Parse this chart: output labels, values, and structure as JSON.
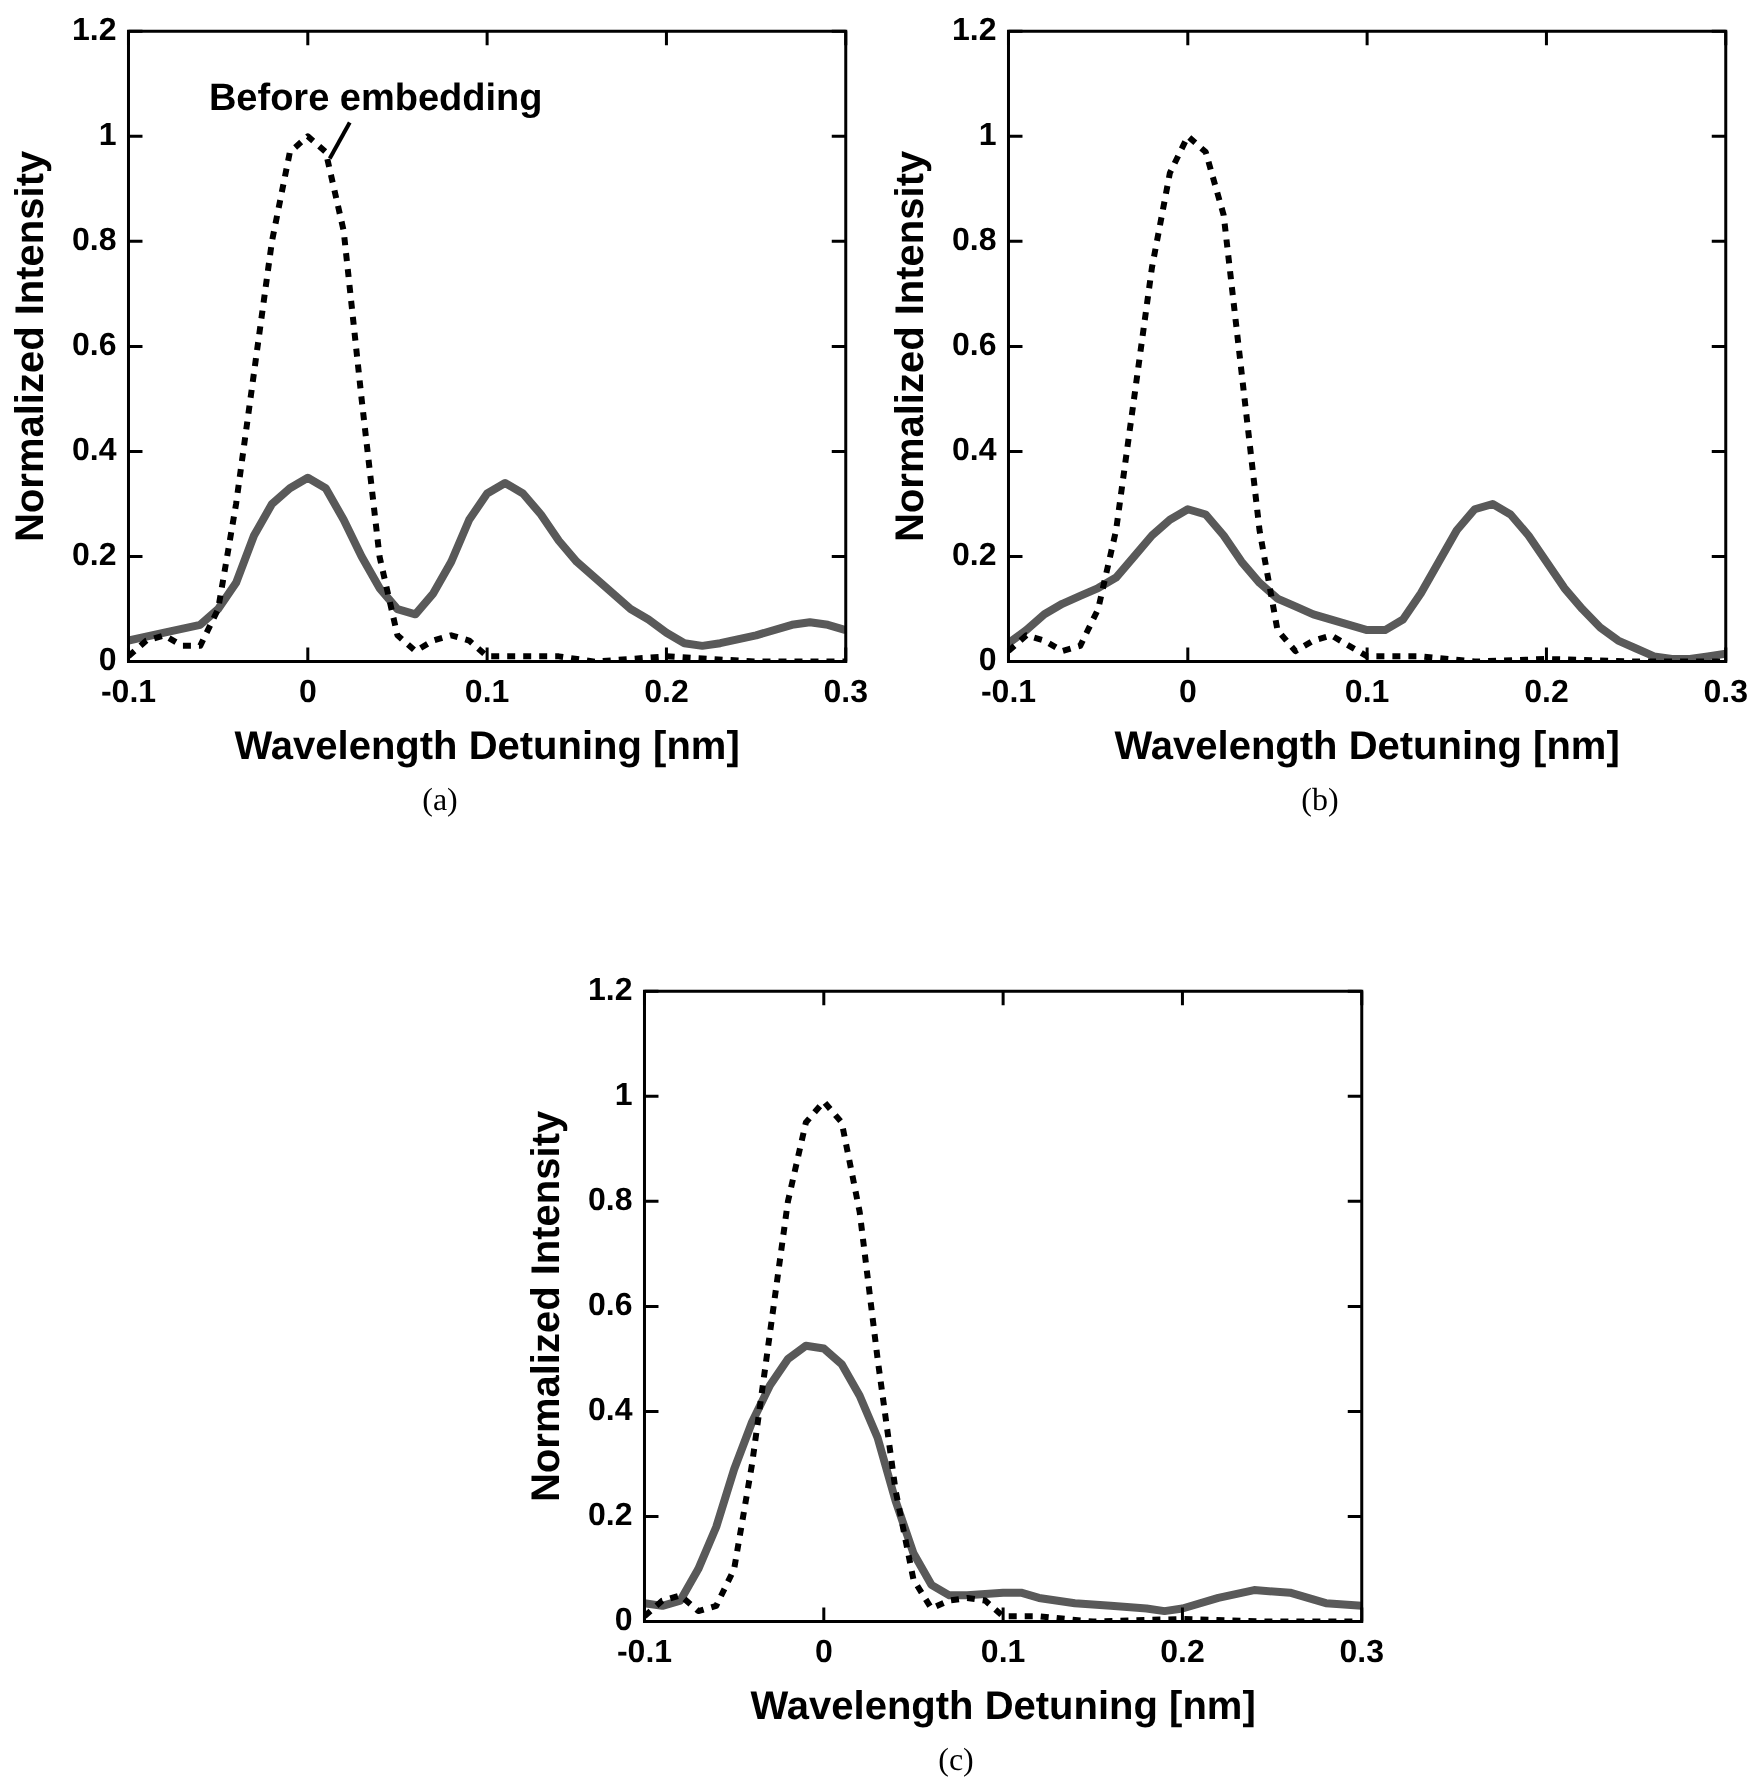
{
  "chart_data": [
    {
      "type": "line",
      "xlabel": "Wavelength Detuning [nm]",
      "ylabel": "Normalized Intensity",
      "xlim": [
        -0.1,
        0.3
      ],
      "ylim": [
        0,
        1.2
      ],
      "xticks": [
        -0.1,
        0,
        0.1,
        0.2,
        0.3
      ],
      "yticks": [
        0,
        0.2,
        0.4,
        0.6,
        0.8,
        1,
        1.2
      ],
      "grid": false,
      "marker": "none",
      "annotations": [
        {
          "text": "Before embedding",
          "x": 0.01,
          "y": 0.95
        },
        "(a)"
      ],
      "series": [
        {
          "color": "#000000",
          "line_style": "dotted",
          "x": [
            -0.1,
            -0.09,
            -0.08,
            -0.07,
            -0.06,
            -0.05,
            -0.04,
            -0.03,
            -0.02,
            -0.01,
            0,
            0.01,
            0.02,
            0.03,
            0.04,
            0.05,
            0.06,
            0.07,
            0.08,
            0.09,
            0.1,
            0.12,
            0.14,
            0.16,
            0.2,
            0.25,
            0.3
          ],
          "values": [
            0.01,
            0.04,
            0.05,
            0.03,
            0.03,
            0.1,
            0.3,
            0.55,
            0.8,
            0.97,
            1.0,
            0.97,
            0.82,
            0.5,
            0.2,
            0.05,
            0.02,
            0.04,
            0.05,
            0.04,
            0.01,
            0.01,
            0.01,
            0,
            0.01,
            0,
            0
          ]
        },
        {
          "color": "#595959",
          "line_style": "solid",
          "x": [
            -0.1,
            -0.08,
            -0.06,
            -0.05,
            -0.04,
            -0.03,
            -0.02,
            -0.01,
            0,
            0.01,
            0.02,
            0.03,
            0.04,
            0.05,
            0.06,
            0.07,
            0.08,
            0.09,
            0.1,
            0.11,
            0.12,
            0.13,
            0.14,
            0.15,
            0.16,
            0.17,
            0.18,
            0.19,
            0.2,
            0.21,
            0.22,
            0.23,
            0.25,
            0.27,
            0.28,
            0.29,
            0.3
          ],
          "values": [
            0.04,
            0.055,
            0.07,
            0.1,
            0.15,
            0.24,
            0.3,
            0.33,
            0.35,
            0.33,
            0.27,
            0.2,
            0.14,
            0.1,
            0.09,
            0.13,
            0.19,
            0.27,
            0.32,
            0.34,
            0.32,
            0.28,
            0.23,
            0.19,
            0.16,
            0.13,
            0.1,
            0.08,
            0.055,
            0.035,
            0.03,
            0.035,
            0.05,
            0.07,
            0.075,
            0.07,
            0.06
          ]
        }
      ]
    },
    {
      "type": "line",
      "xlabel": "Wavelength Detuning [nm]",
      "ylabel": "Normalized Intensity",
      "xlim": [
        -0.1,
        0.3
      ],
      "ylim": [
        0,
        1.2
      ],
      "xticks": [
        -0.1,
        0,
        0.1,
        0.2,
        0.3
      ],
      "yticks": [
        0,
        0.2,
        0.4,
        0.6,
        0.8,
        1,
        1.2
      ],
      "grid": false,
      "marker": "none",
      "annotations": [
        "(b)"
      ],
      "series": [
        {
          "color": "#000000",
          "line_style": "dotted",
          "x": [
            -0.1,
            -0.09,
            -0.08,
            -0.07,
            -0.06,
            -0.05,
            -0.04,
            -0.03,
            -0.02,
            -0.01,
            0,
            0.01,
            0.02,
            0.03,
            0.04,
            0.05,
            0.06,
            0.07,
            0.08,
            0.09,
            0.1,
            0.13,
            0.16,
            0.2,
            0.25,
            0.3
          ],
          "values": [
            0.02,
            0.05,
            0.04,
            0.02,
            0.03,
            0.1,
            0.25,
            0.5,
            0.75,
            0.93,
            1.0,
            0.97,
            0.85,
            0.55,
            0.25,
            0.06,
            0.02,
            0.04,
            0.05,
            0.03,
            0.01,
            0.01,
            0,
            0.005,
            0,
            0
          ]
        },
        {
          "color": "#595959",
          "line_style": "solid",
          "x": [
            -0.1,
            -0.09,
            -0.08,
            -0.07,
            -0.06,
            -0.05,
            -0.04,
            -0.03,
            -0.02,
            -0.01,
            0,
            0.01,
            0.02,
            0.03,
            0.04,
            0.05,
            0.06,
            0.07,
            0.08,
            0.09,
            0.1,
            0.11,
            0.12,
            0.13,
            0.14,
            0.15,
            0.16,
            0.17,
            0.18,
            0.19,
            0.2,
            0.21,
            0.22,
            0.23,
            0.24,
            0.25,
            0.26,
            0.27,
            0.28,
            0.29,
            0.3
          ],
          "values": [
            0.035,
            0.06,
            0.09,
            0.11,
            0.125,
            0.14,
            0.16,
            0.2,
            0.24,
            0.27,
            0.29,
            0.28,
            0.24,
            0.19,
            0.15,
            0.12,
            0.105,
            0.09,
            0.08,
            0.07,
            0.06,
            0.06,
            0.08,
            0.13,
            0.19,
            0.25,
            0.29,
            0.3,
            0.28,
            0.24,
            0.19,
            0.14,
            0.1,
            0.065,
            0.04,
            0.025,
            0.01,
            0.005,
            0.005,
            0.01,
            0.015
          ]
        }
      ]
    },
    {
      "type": "line",
      "xlabel": "Wavelength Detuning [nm]",
      "ylabel": "Normalized Intensity",
      "xlim": [
        -0.1,
        0.3
      ],
      "ylim": [
        0,
        1.2
      ],
      "xticks": [
        -0.1,
        0,
        0.1,
        0.2,
        0.3
      ],
      "yticks": [
        0,
        0.2,
        0.4,
        0.6,
        0.8,
        1,
        1.2
      ],
      "grid": false,
      "marker": "none",
      "annotations": [
        "(c)"
      ],
      "series": [
        {
          "color": "#000000",
          "line_style": "dotted",
          "x": [
            -0.1,
            -0.09,
            -0.08,
            -0.07,
            -0.06,
            -0.05,
            -0.04,
            -0.03,
            -0.02,
            -0.01,
            0,
            0.01,
            0.02,
            0.03,
            0.04,
            0.05,
            0.06,
            0.07,
            0.08,
            0.09,
            0.1,
            0.12,
            0.15,
            0.2,
            0.25,
            0.3
          ],
          "values": [
            0.01,
            0.04,
            0.05,
            0.02,
            0.03,
            0.1,
            0.3,
            0.55,
            0.8,
            0.95,
            0.99,
            0.95,
            0.78,
            0.5,
            0.25,
            0.08,
            0.025,
            0.04,
            0.045,
            0.04,
            0.01,
            0.01,
            0,
            0.005,
            0,
            0
          ]
        },
        {
          "color": "#595959",
          "line_style": "solid",
          "x": [
            -0.1,
            -0.09,
            -0.08,
            -0.07,
            -0.06,
            -0.05,
            -0.04,
            -0.03,
            -0.02,
            -0.01,
            0,
            0.01,
            0.02,
            0.03,
            0.04,
            0.05,
            0.06,
            0.07,
            0.08,
            0.1,
            0.11,
            0.12,
            0.14,
            0.16,
            0.18,
            0.19,
            0.2,
            0.22,
            0.24,
            0.26,
            0.28,
            0.3
          ],
          "values": [
            0.035,
            0.03,
            0.04,
            0.1,
            0.18,
            0.29,
            0.38,
            0.45,
            0.5,
            0.525,
            0.52,
            0.49,
            0.43,
            0.35,
            0.23,
            0.13,
            0.07,
            0.05,
            0.05,
            0.055,
            0.055,
            0.045,
            0.035,
            0.03,
            0.025,
            0.02,
            0.025,
            0.045,
            0.06,
            0.055,
            0.035,
            0.03
          ]
        }
      ]
    }
  ]
}
